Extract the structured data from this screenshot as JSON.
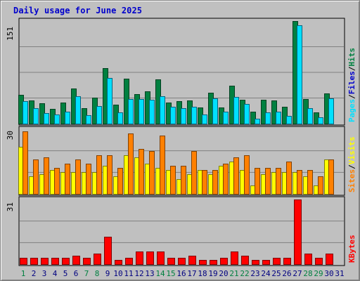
{
  "title": "Daily usage for June 2025",
  "colors": {
    "background": "#c0c0c0",
    "title": "#0000cc",
    "hits": "#008040",
    "files": "#00e0ff",
    "sites": "#ff8000",
    "visits": "#ffff00",
    "kbytes": "#ff0000",
    "weekday_label": "#000080",
    "weekend_label": "#008040"
  },
  "chart_data": [
    {
      "type": "bar",
      "panel": "top",
      "ymax_label": "151",
      "ylim": [
        0,
        151
      ],
      "right_labels": [
        "Pages",
        "/",
        "Files",
        "/",
        "Hits"
      ],
      "series": [
        {
          "name": "Hits",
          "values": [
            42,
            34,
            30,
            22,
            31,
            52,
            23,
            38,
            82,
            28,
            66,
            43,
            48,
            65,
            31,
            33,
            34,
            24,
            45,
            24,
            56,
            35,
            18,
            35,
            34,
            25,
            151,
            36,
            17,
            44
          ]
        },
        {
          "name": "Files",
          "values": [
            33,
            23,
            16,
            13,
            18,
            40,
            12,
            26,
            67,
            17,
            36,
            36,
            35,
            40,
            25,
            23,
            25,
            13,
            37,
            18,
            39,
            29,
            7,
            17,
            18,
            11,
            145,
            23,
            9,
            37
          ]
        }
      ]
    },
    {
      "type": "bar",
      "panel": "middle",
      "ymax_label": "30",
      "ylim": [
        0,
        30
      ],
      "right_labels": [
        "Sites",
        "/",
        "Visits"
      ],
      "series": [
        {
          "name": "Visits",
          "values": [
            22,
            8,
            9,
            11,
            10,
            10,
            10,
            10,
            13,
            8,
            18,
            17,
            14,
            12,
            11,
            7,
            9,
            11,
            9,
            13,
            15,
            11,
            4,
            9,
            10,
            10,
            10,
            8,
            4,
            16
          ]
        },
        {
          "name": "Sites",
          "values": [
            29,
            16,
            17,
            12,
            14,
            16,
            14,
            18,
            18,
            12,
            28,
            21,
            20,
            27,
            13,
            13,
            20,
            11,
            11,
            14,
            17,
            18,
            12,
            12,
            12,
            15,
            11,
            11,
            8,
            16
          ]
        }
      ]
    },
    {
      "type": "bar",
      "panel": "bottom",
      "ymax_label": "31",
      "ylim": [
        0,
        31
      ],
      "right_labels": [
        "KBytes"
      ],
      "series": [
        {
          "name": "KBytes",
          "values": [
            3,
            3,
            3,
            3,
            3,
            4,
            3,
            5,
            13,
            2,
            3,
            6,
            6,
            6,
            3,
            3,
            4,
            2,
            2,
            3,
            6,
            4,
            2,
            2,
            3,
            3,
            31,
            5,
            3,
            5
          ]
        }
      ]
    }
  ],
  "x_axis": {
    "labels": [
      "1",
      "2",
      "3",
      "4",
      "5",
      "6",
      "7",
      "8",
      "9",
      "10",
      "11",
      "12",
      "13",
      "14",
      "15",
      "16",
      "17",
      "18",
      "19",
      "20",
      "21",
      "22",
      "23",
      "24",
      "25",
      "26",
      "27",
      "28",
      "29",
      "30",
      "31"
    ],
    "weekend_days": [
      1,
      7,
      8,
      14,
      15,
      21,
      22,
      28,
      29
    ]
  }
}
